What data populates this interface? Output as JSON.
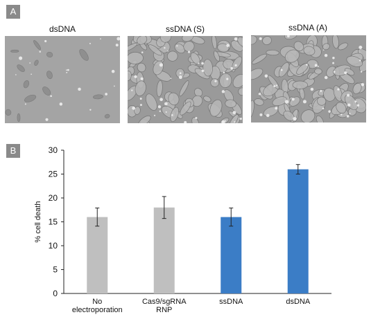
{
  "panels": {
    "a_label": "A",
    "b_label": "B"
  },
  "micrographs": [
    {
      "title": "dsDNA",
      "density": "sparse"
    },
    {
      "title": "ssDNA (S)",
      "density": "dense"
    },
    {
      "title": "ssDNA (A)",
      "density": "dense"
    }
  ],
  "chart_data": {
    "type": "bar",
    "categories": [
      [
        "No",
        "electroporation"
      ],
      [
        "Cas9/sgRNA",
        "RNP"
      ],
      [
        "ssDNA"
      ],
      [
        "dsDNA"
      ]
    ],
    "values": [
      16,
      18,
      16,
      26
    ],
    "errors": [
      1.9,
      2.3,
      1.9,
      1.0
    ],
    "ylabel": "% cell death",
    "ylim": [
      0,
      30
    ],
    "yticks": [
      0,
      5,
      10,
      15,
      20,
      25,
      30
    ],
    "bar_colors": [
      "#bfbfbf",
      "#bfbfbf",
      "#3b7dc6",
      "#3b7dc6"
    ],
    "grid": false
  }
}
